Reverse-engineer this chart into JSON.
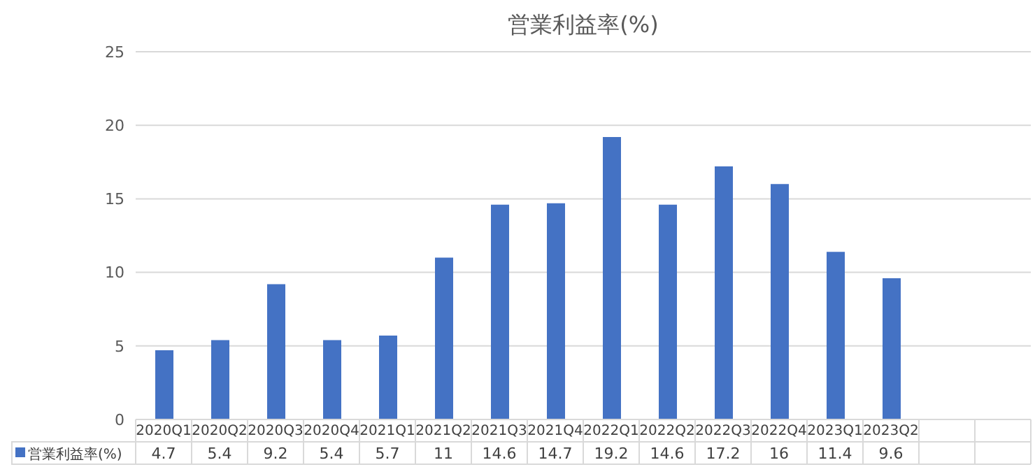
{
  "chart_data": {
    "type": "bar",
    "title": "営業利益率(%)",
    "categories": [
      "2020Q1",
      "2020Q2",
      "2020Q3",
      "2020Q4",
      "2021Q1",
      "2021Q2",
      "2021Q3",
      "2021Q4",
      "2022Q1",
      "2022Q2",
      "2022Q3",
      "2022Q4",
      "2023Q1",
      "2023Q2",
      null,
      null
    ],
    "series": [
      {
        "name": "営業利益率(%)",
        "color": "#4472c4",
        "values": [
          4.7,
          5.4,
          9.2,
          5.4,
          5.7,
          11,
          14.6,
          14.7,
          19.2,
          14.6,
          17.2,
          16,
          11.4,
          9.6,
          null,
          null
        ]
      }
    ],
    "ylim": [
      0,
      25
    ],
    "yticks": [
      0,
      5,
      10,
      15,
      20,
      25
    ],
    "grid": "y",
    "legend": "bottom left",
    "data_labels": true
  }
}
